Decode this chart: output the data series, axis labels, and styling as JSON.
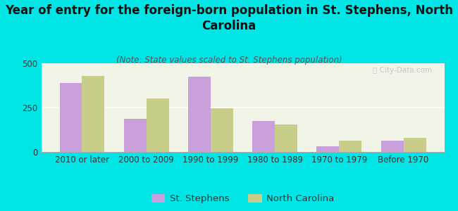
{
  "title": "Year of entry for the foreign-born population in St. Stephens, North\nCarolina",
  "subtitle": "(Note: State values scaled to St. Stephens population)",
  "categories": [
    "2010 or later",
    "2000 to 2009",
    "1990 to 1999",
    "1980 to 1989",
    "1970 to 1979",
    "Before 1970"
  ],
  "st_stephens": [
    390,
    185,
    425,
    175,
    30,
    65
  ],
  "north_carolina": [
    430,
    300,
    245,
    155,
    65,
    80
  ],
  "st_stephens_color": "#c9a0dc",
  "north_carolina_color": "#c8cd8a",
  "background_color": "#00e5e5",
  "plot_bg_color": "#f0f5e8",
  "ylim": [
    0,
    500
  ],
  "yticks": [
    0,
    250,
    500
  ],
  "legend_labels": [
    "St. Stephens",
    "North Carolina"
  ],
  "bar_width": 0.35,
  "title_fontsize": 12,
  "subtitle_fontsize": 8.5,
  "axis_label_fontsize": 8.5,
  "legend_fontsize": 9.5,
  "watermark_text": "ⓘ City-Data.com"
}
